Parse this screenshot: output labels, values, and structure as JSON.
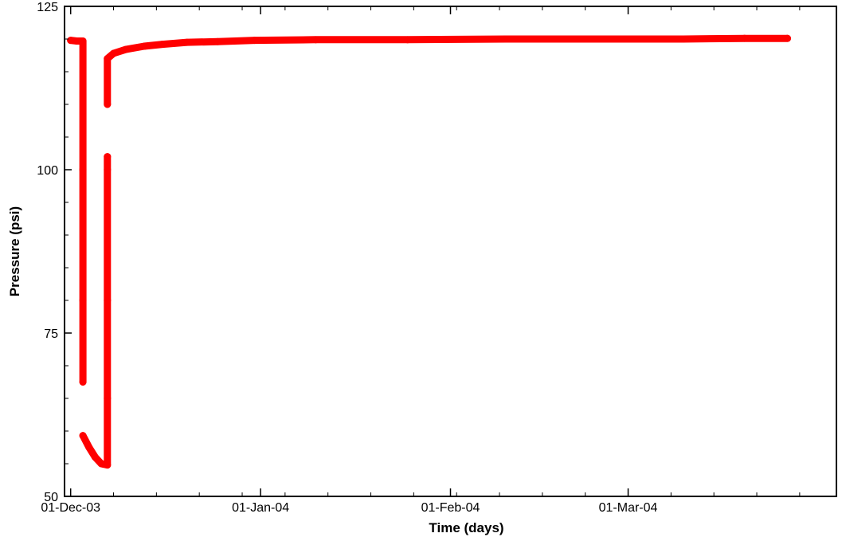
{
  "chart_data": {
    "type": "scatter",
    "title": "",
    "xlabel": "Time  (days)",
    "ylabel": "Pressure  (psi)",
    "xlim": [
      "2003-11-30",
      "2004-04-04"
    ],
    "ylim": [
      50,
      125
    ],
    "x_ticks": [
      {
        "value": "2003-12-01",
        "label": "01-Dec-03"
      },
      {
        "value": "2004-01-01",
        "label": "01-Jan-04"
      },
      {
        "value": "2004-02-01",
        "label": "01-Feb-04"
      },
      {
        "value": "2004-03-01",
        "label": "01-Mar-04"
      }
    ],
    "y_ticks": [
      {
        "value": 50,
        "label": "50"
      },
      {
        "value": 75,
        "label": "75"
      },
      {
        "value": 100,
        "label": "100"
      },
      {
        "value": 125,
        "label": "125"
      }
    ],
    "grid": false,
    "legend": "none",
    "series": [
      {
        "color": "#ff0000",
        "points": [
          {
            "x": "2003-12-01",
            "y": 119.8
          },
          {
            "x": "2003-12-02",
            "y": 119.7
          },
          {
            "x": "2003-12-03",
            "y": 119.7
          },
          {
            "x": "2003-12-03",
            "y": 100.0
          },
          {
            "x": "2003-12-03",
            "y": 80.0
          },
          {
            "x": "2003-12-03",
            "y": 67.5
          },
          {
            "x": "2003-12-03",
            "y": 59.3
          },
          {
            "x": "2003-12-04",
            "y": 57.5
          },
          {
            "x": "2003-12-05",
            "y": 56.0
          },
          {
            "x": "2003-12-06",
            "y": 55.0
          },
          {
            "x": "2003-12-07",
            "y": 54.8
          },
          {
            "x": "2003-12-07",
            "y": 65.0
          },
          {
            "x": "2003-12-07",
            "y": 80.0
          },
          {
            "x": "2003-12-07",
            "y": 100.0
          },
          {
            "x": "2003-12-07",
            "y": 102.0
          },
          {
            "x": "2003-12-07",
            "y": 110.0
          },
          {
            "x": "2003-12-07",
            "y": 117.0
          },
          {
            "x": "2003-12-08",
            "y": 117.8
          },
          {
            "x": "2003-12-10",
            "y": 118.4
          },
          {
            "x": "2003-12-13",
            "y": 118.9
          },
          {
            "x": "2003-12-16",
            "y": 119.2
          },
          {
            "x": "2003-12-20",
            "y": 119.5
          },
          {
            "x": "2003-12-25",
            "y": 119.6
          },
          {
            "x": "2003-12-31",
            "y": 119.8
          },
          {
            "x": "2004-01-10",
            "y": 119.9
          },
          {
            "x": "2004-01-25",
            "y": 119.9
          },
          {
            "x": "2004-02-10",
            "y": 120.0
          },
          {
            "x": "2004-02-25",
            "y": 120.0
          },
          {
            "x": "2004-03-10",
            "y": 120.0
          },
          {
            "x": "2004-03-20",
            "y": 120.1
          },
          {
            "x": "2004-03-27",
            "y": 120.1
          }
        ]
      }
    ]
  }
}
